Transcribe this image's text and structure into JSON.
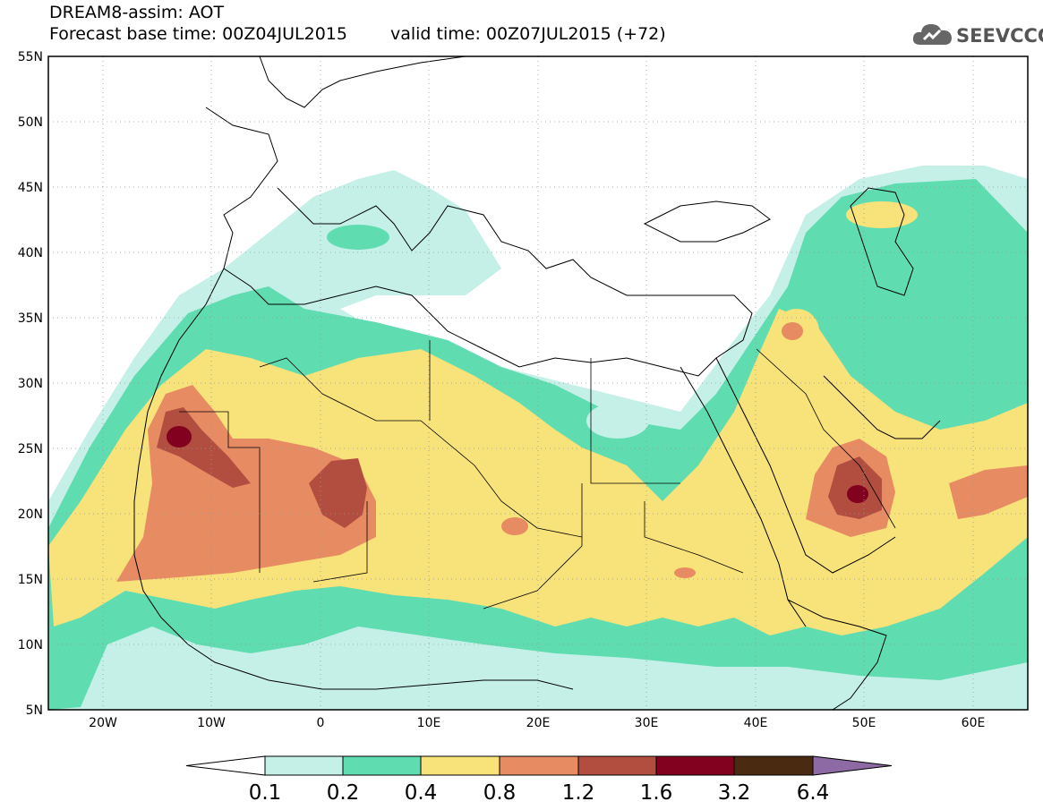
{
  "header": {
    "title": "DREAM8-assim: AOT",
    "base_time": "Forecast base time: 00Z04JUL2015",
    "valid_time": "valid time: 00Z07JUL2015 (+72)"
  },
  "logo": {
    "text": "SEEVCCC",
    "icon": "cloud-icon"
  },
  "axes": {
    "lat_labels": [
      "55N",
      "50N",
      "45N",
      "40N",
      "35N",
      "30N",
      "25N",
      "20N",
      "15N",
      "10N",
      "5N"
    ],
    "lon_labels": [
      "20W",
      "10W",
      "0",
      "10E",
      "20E",
      "30E",
      "40E",
      "50E",
      "60E"
    ],
    "lat_range": [
      5,
      55
    ],
    "lon_range": [
      -25,
      65
    ]
  },
  "colorbar": {
    "levels": [
      "0.1",
      "0.2",
      "0.4",
      "0.8",
      "1.2",
      "1.6",
      "3.2",
      "6.4"
    ],
    "colors": [
      "#ffffff",
      "#c4f0e8",
      "#5fdcb0",
      "#f8e27a",
      "#e78b63",
      "#b24e3f",
      "#82011f",
      "#4a2b12",
      "#8e6aa4"
    ]
  },
  "palette": {
    "c02": "#c4f0e8",
    "c04": "#5fdcb0",
    "c08": "#f8e27a",
    "c12": "#e78b63",
    "c16": "#b24e3f",
    "c32": "#82011f"
  }
}
